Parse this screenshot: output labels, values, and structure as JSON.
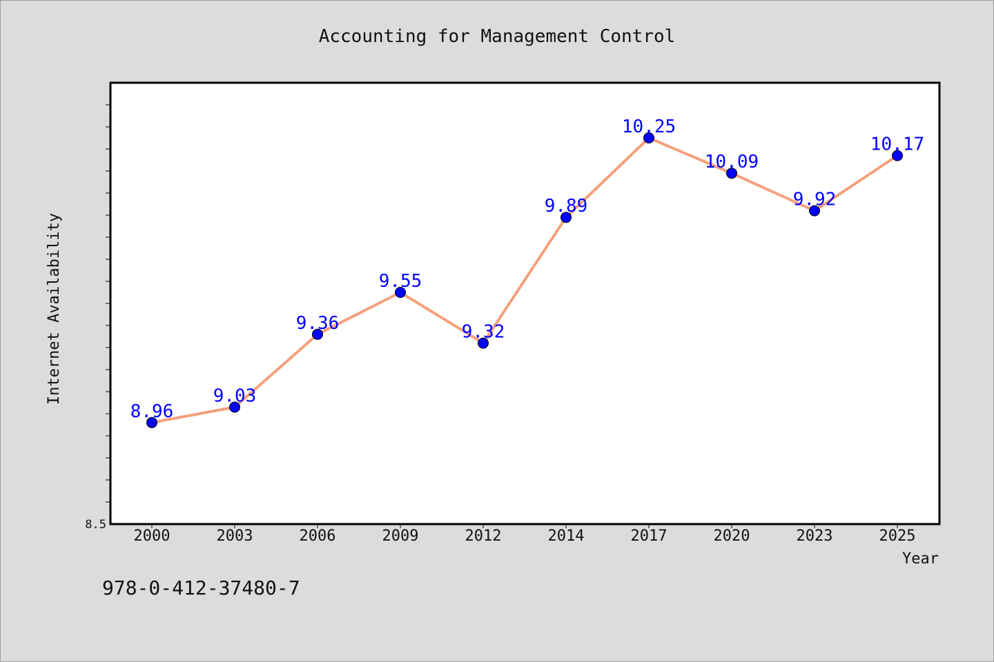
{
  "chart_data": {
    "type": "line",
    "title": "Accounting for Management Control",
    "xlabel": "Year",
    "ylabel": "Internet Availability",
    "categories": [
      "2000",
      "2003",
      "2006",
      "2009",
      "2012",
      "2014",
      "2017",
      "2020",
      "2023",
      "2025"
    ],
    "series": [
      {
        "values": [
          8.96,
          9.03,
          9.36,
          9.55,
          9.32,
          9.89,
          10.25,
          10.09,
          9.92,
          10.17
        ],
        "labels": [
          "8.96",
          "9.03",
          "9.36",
          "9.55",
          "9.32",
          "9.89",
          "10.25",
          "10.09",
          "9.92",
          "10.17"
        ],
        "line_color": "#f4a07c",
        "marker_color": "#0000ff"
      }
    ],
    "ylim": [
      8.5,
      10.5
    ],
    "yticks_labeled": [
      "8.5"
    ],
    "grid": false,
    "legend": "none"
  },
  "footer": {
    "isbn": "978-0-412-37480-7"
  },
  "colors": {
    "background": "#dcdcdc",
    "plot_background": "#ffffff",
    "line": "#f4a07c",
    "marker": "#0000ff",
    "data_label": "#0000ff"
  }
}
